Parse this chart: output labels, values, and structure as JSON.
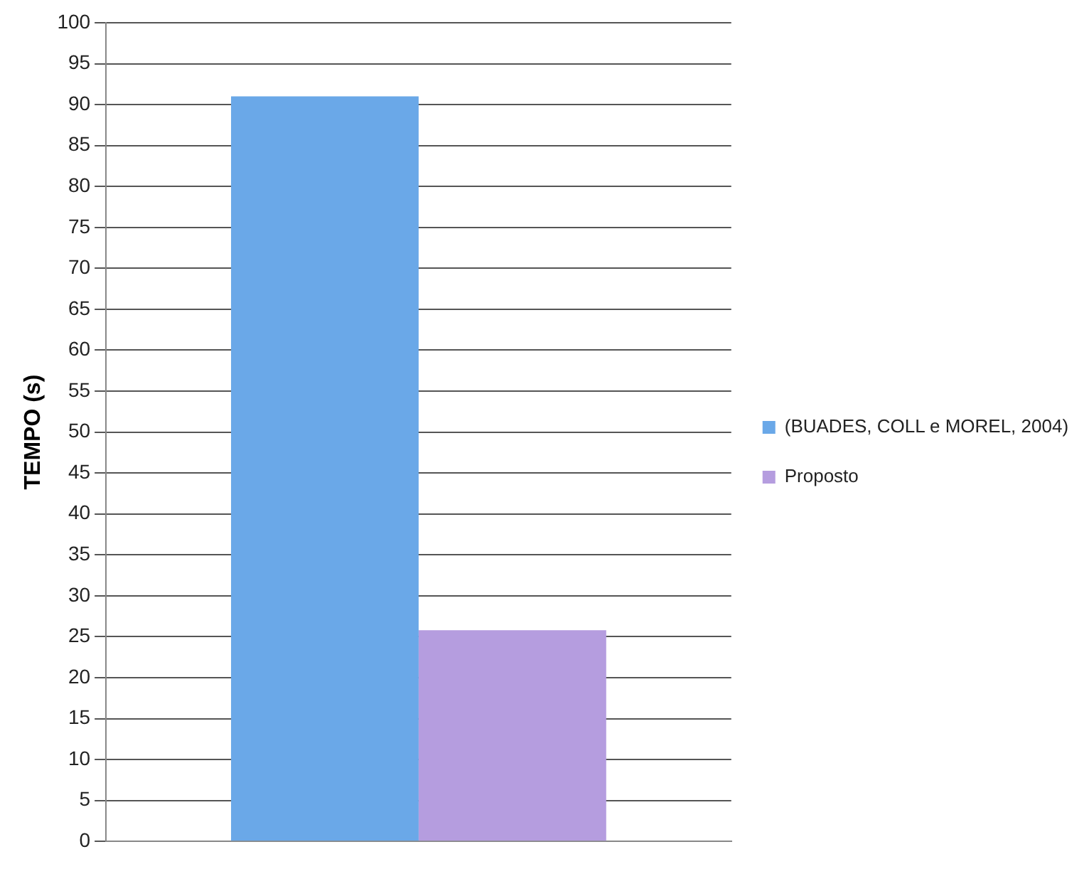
{
  "chart_data": {
    "type": "bar",
    "ylabel": "TEMPO (s)",
    "categories": [
      null
    ],
    "series": [
      {
        "name": "(BUADES, COLL e MOREL, 2004)",
        "color": "#6aa8e8",
        "values": [
          91
        ]
      },
      {
        "name": "Proposto",
        "color": "#b59ddf",
        "values": [
          25.8
        ]
      }
    ],
    "ylim": [
      0,
      100
    ],
    "yticks": [
      0,
      5,
      10,
      15,
      20,
      25,
      30,
      35,
      40,
      45,
      50,
      55,
      60,
      65,
      70,
      75,
      80,
      85,
      90,
      95,
      100
    ],
    "grid": "y",
    "legend": "right"
  }
}
